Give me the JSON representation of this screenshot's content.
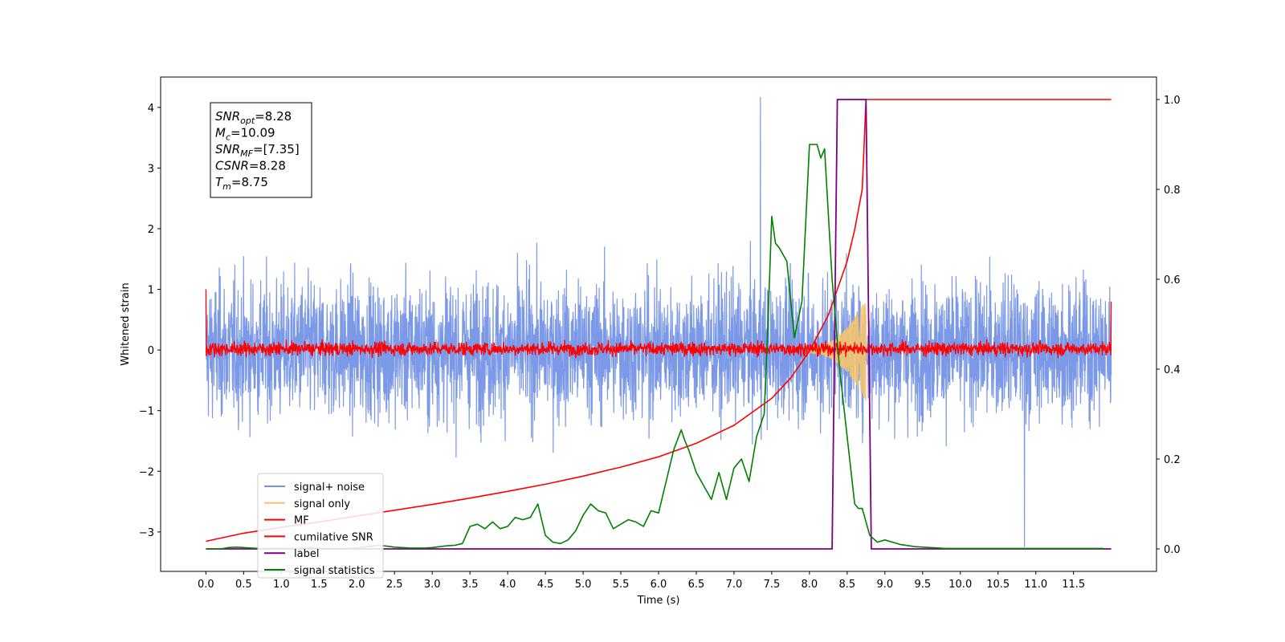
{
  "chart_data": {
    "type": "line",
    "title": "",
    "xlabel": "Time (s)",
    "ylabel": "Whitened strain",
    "ylabel_right": "",
    "xlim": [
      -0.6,
      12.6
    ],
    "ylim": [
      -3.65,
      4.5
    ],
    "ylim_right": [
      -0.05,
      1.05
    ],
    "x_ticks": [
      0.0,
      0.5,
      1.0,
      1.5,
      2.0,
      2.5,
      3.0,
      3.5,
      4.0,
      4.5,
      5.0,
      5.5,
      6.0,
      6.5,
      7.0,
      7.5,
      8.0,
      8.5,
      9.0,
      9.5,
      10.0,
      10.5,
      11.0,
      11.5
    ],
    "x_tick_labels": [
      "0.0",
      "0.5",
      "1.0",
      "1.5",
      "2.0",
      "2.5",
      "3.0",
      "3.5",
      "4.0",
      "4.5",
      "5.0",
      "5.5",
      "6.0",
      "6.5",
      "7.0",
      "7.5",
      "8.0",
      "8.5",
      "9.0",
      "9.5",
      "10.0",
      "10.5",
      "11.0",
      "11.5"
    ],
    "y_ticks": [
      -3,
      -2,
      -1,
      0,
      1,
      2,
      3,
      4
    ],
    "y_tick_labels": [
      "−3",
      "−2",
      "−1",
      "0",
      "1",
      "2",
      "3",
      "4"
    ],
    "y_ticks_right": [
      0.0,
      0.2,
      0.4,
      0.6,
      0.8,
      1.0
    ],
    "y_tick_labels_right": [
      "0.0",
      "0.2",
      "0.4",
      "0.6",
      "0.8",
      "1.0"
    ],
    "grid": false,
    "legend_position": "lower-left",
    "annotation": {
      "lines": [
        {
          "base": "SNR",
          "sub": "opt",
          "rest": "=8.28"
        },
        {
          "base": "M",
          "sub": "c",
          "rest": "=10.09"
        },
        {
          "base": "SNR",
          "sub": "MF",
          "rest": "=[7.35]"
        },
        {
          "base": "CSNR",
          "sub": "",
          "rest": "=8.28"
        },
        {
          "base": "T",
          "sub": "m",
          "rest": "=8.75"
        }
      ]
    },
    "series": [
      {
        "name": "signal+ noise",
        "axis": "left",
        "color": "#7593e6",
        "style": "noise",
        "x_range": [
          0.0,
          12.0
        ],
        "amplitude_typical": 1.1,
        "max": 4.17,
        "min": -3.25
      },
      {
        "name": "signal only",
        "axis": "left",
        "color": "#f5c46e",
        "style": "chirp",
        "x_range": [
          8.0,
          8.75
        ],
        "peak_amplitude": 0.9
      },
      {
        "name": "MF",
        "axis": "left",
        "color": "#ff0000",
        "style": "noise",
        "x_range": [
          0.0,
          12.0
        ],
        "amplitude_typical": 0.2,
        "start_value": 1.0,
        "end_value": 0.8
      },
      {
        "name": "cumilative SNR",
        "axis": "right",
        "color": "#ff0000",
        "x": [
          0.0,
          0.5,
          1.0,
          1.5,
          2.0,
          2.5,
          3.0,
          3.5,
          4.0,
          4.5,
          5.0,
          5.5,
          6.0,
          6.5,
          7.0,
          7.5,
          7.75,
          8.0,
          8.25,
          8.5,
          8.6,
          8.7,
          8.75,
          12.0
        ],
        "y": [
          0.017,
          0.035,
          0.048,
          0.06,
          0.073,
          0.086,
          0.099,
          0.113,
          0.128,
          0.144,
          0.162,
          0.182,
          0.205,
          0.235,
          0.275,
          0.335,
          0.38,
          0.44,
          0.52,
          0.64,
          0.71,
          0.8,
          1.0,
          1.0
        ]
      },
      {
        "name": "label",
        "axis": "right",
        "color": "#7f007f",
        "x": [
          0.0,
          8.3,
          8.37,
          8.75,
          8.82,
          12.0
        ],
        "y": [
          0.0,
          0.0,
          1.0,
          1.0,
          0.0,
          0.0
        ]
      },
      {
        "name": "signal statistics",
        "axis": "right",
        "color": "#008000",
        "x": [
          0.0,
          0.1,
          0.2,
          0.3,
          0.4,
          0.5,
          0.6,
          0.7,
          0.8,
          0.9,
          1.0,
          1.2,
          1.4,
          1.6,
          1.8,
          2.0,
          2.2,
          2.3,
          2.4,
          2.5,
          2.6,
          2.7,
          2.8,
          2.9,
          3.0,
          3.1,
          3.2,
          3.3,
          3.4,
          3.5,
          3.6,
          3.7,
          3.8,
          3.9,
          4.0,
          4.1,
          4.2,
          4.3,
          4.4,
          4.5,
          4.6,
          4.7,
          4.8,
          4.9,
          5.0,
          5.1,
          5.2,
          5.3,
          5.4,
          5.5,
          5.6,
          5.7,
          5.8,
          5.9,
          6.0,
          6.1,
          6.2,
          6.3,
          6.35,
          6.4,
          6.5,
          6.6,
          6.7,
          6.8,
          6.9,
          7.0,
          7.1,
          7.2,
          7.3,
          7.4,
          7.45,
          7.5,
          7.55,
          7.6,
          7.7,
          7.8,
          7.9,
          8.0,
          8.1,
          8.15,
          8.2,
          8.3,
          8.4,
          8.5,
          8.6,
          8.65,
          8.7,
          8.8,
          8.9,
          9.0,
          9.2,
          9.4,
          9.6,
          9.8,
          10.0,
          10.5,
          11.0,
          11.5,
          11.9
        ],
        "y": [
          0.0,
          0.0,
          0.0,
          0.003,
          0.004,
          0.003,
          0.002,
          0.001,
          0.001,
          0.001,
          0.001,
          0.001,
          0.002,
          0.001,
          0.001,
          0.002,
          0.006,
          0.008,
          0.006,
          0.004,
          0.003,
          0.002,
          0.002,
          0.002,
          0.003,
          0.005,
          0.007,
          0.008,
          0.012,
          0.05,
          0.055,
          0.045,
          0.06,
          0.045,
          0.05,
          0.07,
          0.065,
          0.07,
          0.1,
          0.03,
          0.015,
          0.012,
          0.02,
          0.04,
          0.075,
          0.1,
          0.085,
          0.08,
          0.045,
          0.055,
          0.065,
          0.06,
          0.05,
          0.085,
          0.08,
          0.15,
          0.22,
          0.265,
          0.24,
          0.22,
          0.17,
          0.14,
          0.11,
          0.17,
          0.11,
          0.18,
          0.2,
          0.15,
          0.25,
          0.3,
          0.5,
          0.74,
          0.68,
          0.67,
          0.64,
          0.47,
          0.55,
          0.9,
          0.9,
          0.87,
          0.89,
          0.6,
          0.4,
          0.25,
          0.1,
          0.09,
          0.09,
          0.03,
          0.015,
          0.02,
          0.01,
          0.005,
          0.003,
          0.001,
          0.001,
          0.001,
          0.001,
          0.001,
          0.001
        ]
      }
    ]
  }
}
